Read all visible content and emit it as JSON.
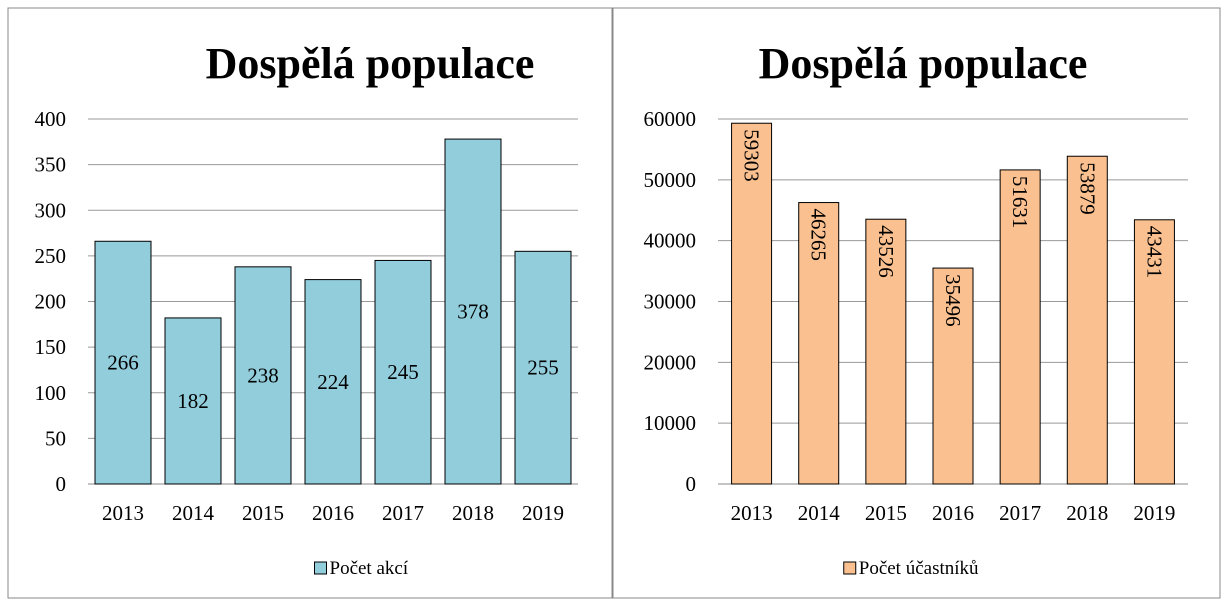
{
  "chart_data": [
    {
      "type": "bar",
      "title": "Dospělá populace",
      "categories": [
        "2013",
        "2014",
        "2015",
        "2016",
        "2017",
        "2018",
        "2019"
      ],
      "series": [
        {
          "name": "Počet akcí",
          "color": "#92cddc",
          "values": [
            266,
            182,
            238,
            224,
            245,
            378,
            255
          ]
        }
      ],
      "ylim": [
        0,
        400
      ],
      "yticks": [
        0,
        50,
        100,
        150,
        200,
        250,
        300,
        350,
        400
      ],
      "grid": true,
      "legend": "bottom"
    },
    {
      "type": "bar",
      "title": "Dospělá populace",
      "categories": [
        "2013",
        "2014",
        "2015",
        "2016",
        "2017",
        "2018",
        "2019"
      ],
      "series": [
        {
          "name": "Počet účastníků",
          "color": "#fac090",
          "values": [
            59303,
            46265,
            43526,
            35496,
            51631,
            53879,
            43431
          ]
        }
      ],
      "ylim": [
        0,
        60000
      ],
      "yticks": [
        0,
        10000,
        20000,
        30000,
        40000,
        50000,
        60000
      ],
      "grid": true,
      "legend": "bottom"
    }
  ]
}
